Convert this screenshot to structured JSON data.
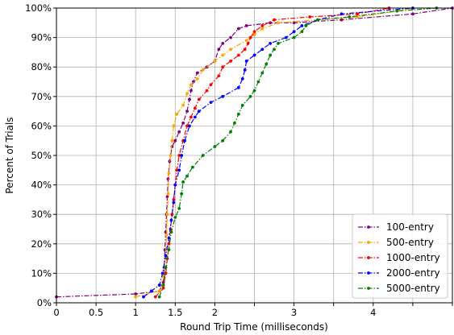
{
  "chart_data": {
    "type": "line",
    "title": "",
    "xlabel": "Round Trip Time (milliseconds)",
    "ylabel": "Percent of Trials",
    "xlim": [
      0,
      5
    ],
    "ylim": [
      0,
      100
    ],
    "x_ticks": [
      0,
      0.5,
      1,
      1.5,
      2,
      2.5,
      3,
      4
    ],
    "x_tick_labels": [
      "0",
      "0.5",
      "1",
      "1.5",
      "2",
      "",
      "3",
      "4"
    ],
    "x_grid": [
      0,
      0.5,
      1,
      1.5,
      2,
      2.5,
      3,
      3.5,
      4,
      4.5,
      5
    ],
    "y_ticks": [
      0,
      10,
      20,
      30,
      40,
      50,
      60,
      70,
      80,
      90,
      100
    ],
    "y_tick_labels": [
      "0%",
      "10%",
      "20%",
      "30%",
      "40%",
      "50%",
      "60%",
      "70%",
      "80%",
      "90%",
      "100%"
    ],
    "grid": true,
    "legend_position": "bottom-right",
    "series": [
      {
        "name": "100-entry",
        "color": "#800080",
        "points": [
          [
            0,
            2
          ],
          [
            1.0,
            3
          ],
          [
            1.3,
            4
          ],
          [
            1.35,
            7
          ],
          [
            1.36,
            12
          ],
          [
            1.37,
            18
          ],
          [
            1.38,
            24
          ],
          [
            1.39,
            30
          ],
          [
            1.4,
            36
          ],
          [
            1.41,
            42
          ],
          [
            1.43,
            48
          ],
          [
            1.46,
            53
          ],
          [
            1.5,
            55
          ],
          [
            1.55,
            58
          ],
          [
            1.6,
            61
          ],
          [
            1.65,
            65
          ],
          [
            1.68,
            69
          ],
          [
            1.7,
            72
          ],
          [
            1.73,
            75
          ],
          [
            1.78,
            78
          ],
          [
            1.9,
            80
          ],
          [
            2.0,
            82
          ],
          [
            2.05,
            86
          ],
          [
            2.1,
            88
          ],
          [
            2.2,
            90
          ],
          [
            2.3,
            93
          ],
          [
            2.4,
            94
          ],
          [
            2.7,
            95
          ],
          [
            3.0,
            95
          ],
          [
            3.6,
            96
          ],
          [
            4.5,
            98
          ],
          [
            5.0,
            100
          ]
        ]
      },
      {
        "name": "500-entry",
        "color": "#FFA500",
        "points": [
          [
            1.0,
            2
          ],
          [
            1.3,
            4
          ],
          [
            1.35,
            9
          ],
          [
            1.38,
            16
          ],
          [
            1.39,
            23
          ],
          [
            1.4,
            30
          ],
          [
            1.41,
            37
          ],
          [
            1.42,
            44
          ],
          [
            1.44,
            50
          ],
          [
            1.46,
            55
          ],
          [
            1.48,
            60
          ],
          [
            1.52,
            64
          ],
          [
            1.6,
            67
          ],
          [
            1.65,
            71
          ],
          [
            1.7,
            74
          ],
          [
            1.78,
            76
          ],
          [
            1.85,
            79
          ],
          [
            2.0,
            82
          ],
          [
            2.1,
            84
          ],
          [
            2.2,
            86
          ],
          [
            2.4,
            89
          ],
          [
            2.5,
            91
          ],
          [
            2.6,
            93
          ],
          [
            2.8,
            95
          ],
          [
            3.3,
            96
          ],
          [
            3.8,
            97
          ],
          [
            4.3,
            99
          ],
          [
            4.5,
            100
          ]
        ]
      },
      {
        "name": "1000-entry",
        "color": "#FF0000",
        "points": [
          [
            1.25,
            2
          ],
          [
            1.35,
            5
          ],
          [
            1.38,
            10
          ],
          [
            1.4,
            15
          ],
          [
            1.42,
            20
          ],
          [
            1.44,
            25
          ],
          [
            1.46,
            30
          ],
          [
            1.48,
            35
          ],
          [
            1.5,
            40
          ],
          [
            1.52,
            45
          ],
          [
            1.55,
            50
          ],
          [
            1.6,
            55
          ],
          [
            1.65,
            60
          ],
          [
            1.7,
            63
          ],
          [
            1.75,
            66
          ],
          [
            1.8,
            69
          ],
          [
            1.9,
            72
          ],
          [
            1.95,
            74
          ],
          [
            2.05,
            77
          ],
          [
            2.1,
            80
          ],
          [
            2.2,
            82
          ],
          [
            2.3,
            84
          ],
          [
            2.38,
            86
          ],
          [
            2.42,
            88
          ],
          [
            2.45,
            90
          ],
          [
            2.5,
            92
          ],
          [
            2.6,
            94
          ],
          [
            2.75,
            96
          ],
          [
            3.2,
            97
          ],
          [
            3.8,
            98
          ],
          [
            4.2,
            100
          ]
        ]
      },
      {
        "name": "2000-entry",
        "color": "#0000FF",
        "points": [
          [
            1.1,
            2
          ],
          [
            1.2,
            4
          ],
          [
            1.3,
            6
          ],
          [
            1.34,
            10
          ],
          [
            1.38,
            16
          ],
          [
            1.42,
            22
          ],
          [
            1.45,
            28
          ],
          [
            1.48,
            34
          ],
          [
            1.5,
            40
          ],
          [
            1.55,
            45
          ],
          [
            1.58,
            50
          ],
          [
            1.62,
            55
          ],
          [
            1.68,
            60
          ],
          [
            1.75,
            63
          ],
          [
            1.8,
            65
          ],
          [
            1.95,
            68
          ],
          [
            2.1,
            70
          ],
          [
            2.3,
            73
          ],
          [
            2.35,
            76
          ],
          [
            2.38,
            79
          ],
          [
            2.4,
            82
          ],
          [
            2.5,
            84
          ],
          [
            2.6,
            86
          ],
          [
            2.7,
            88
          ],
          [
            2.9,
            90
          ],
          [
            3.0,
            92
          ],
          [
            3.1,
            94
          ],
          [
            3.3,
            96
          ],
          [
            3.6,
            98
          ],
          [
            4.5,
            100
          ]
        ]
      },
      {
        "name": "5000-entry",
        "color": "#008000",
        "points": [
          [
            1.3,
            2
          ],
          [
            1.35,
            6
          ],
          [
            1.38,
            12
          ],
          [
            1.42,
            18
          ],
          [
            1.45,
            24
          ],
          [
            1.5,
            29
          ],
          [
            1.55,
            32
          ],
          [
            1.58,
            37
          ],
          [
            1.6,
            41
          ],
          [
            1.65,
            43
          ],
          [
            1.72,
            46
          ],
          [
            1.85,
            50
          ],
          [
            2.0,
            53
          ],
          [
            2.1,
            55
          ],
          [
            2.2,
            58
          ],
          [
            2.25,
            61
          ],
          [
            2.3,
            64
          ],
          [
            2.35,
            67
          ],
          [
            2.45,
            70
          ],
          [
            2.5,
            72
          ],
          [
            2.55,
            75
          ],
          [
            2.6,
            78
          ],
          [
            2.65,
            81
          ],
          [
            2.7,
            84
          ],
          [
            2.75,
            86
          ],
          [
            2.8,
            88
          ],
          [
            3.0,
            90
          ],
          [
            3.1,
            92
          ],
          [
            3.15,
            94
          ],
          [
            3.3,
            96
          ],
          [
            3.7,
            97
          ],
          [
            4.3,
            99
          ],
          [
            4.8,
            100
          ]
        ]
      }
    ]
  }
}
